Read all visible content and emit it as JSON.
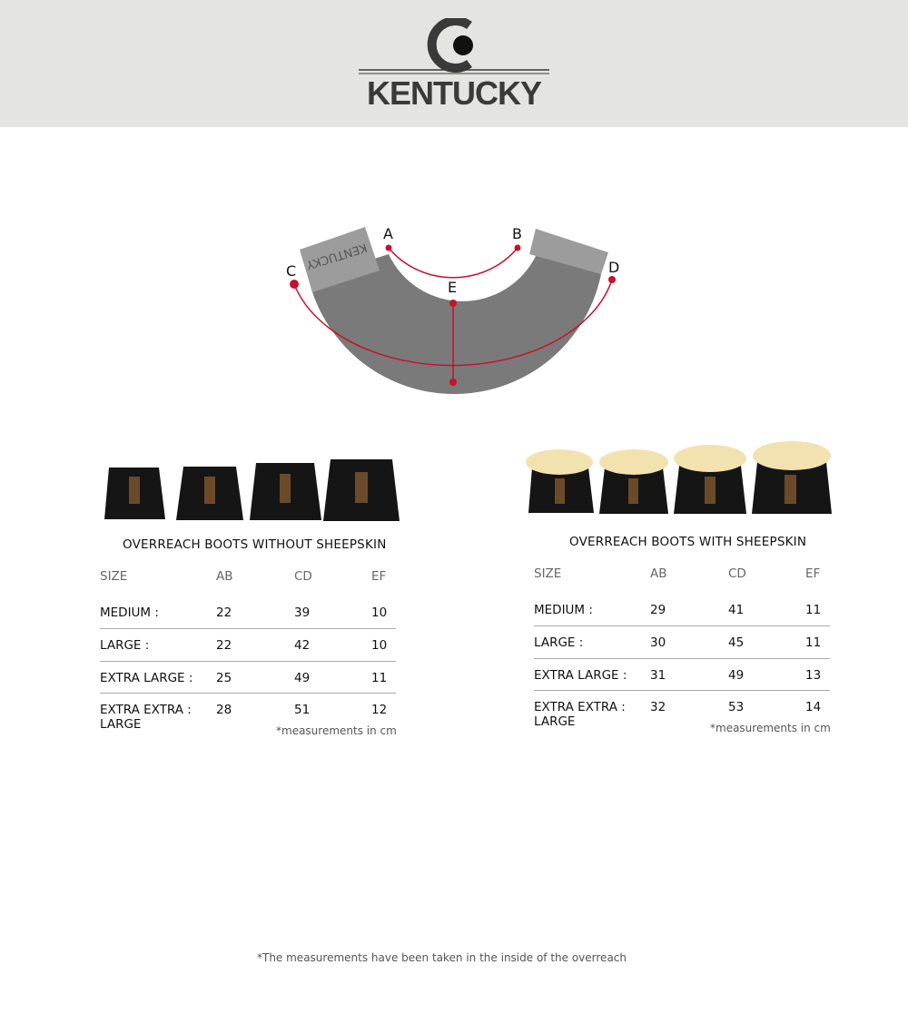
{
  "brand": {
    "name": "KENTUCKY"
  },
  "diagram": {
    "labels": [
      "A",
      "B",
      "C",
      "D",
      "E"
    ],
    "accent": "#c8102e",
    "band_color": "#7a7a7a",
    "tab_color": "#9c9c9c",
    "tab_text": "KENTUCKY"
  },
  "tables": [
    {
      "title": "OVERREACH BOOTS WITHOUT SHEEPSKIN",
      "headers": [
        "SIZE",
        "AB",
        "CD",
        "EF"
      ],
      "rows": [
        [
          "MEDIUM :",
          "22",
          "39",
          "10"
        ],
        [
          "LARGE  :",
          "22",
          "42",
          "10"
        ],
        [
          "EXTRA LARGE :",
          "25",
          "49",
          "11"
        ],
        [
          "EXTRA EXTRA : LARGE",
          "28",
          "51",
          "12"
        ]
      ],
      "note": "*measurements in cm"
    },
    {
      "title": "OVERREACH BOOTS WITH SHEEPSKIN",
      "headers": [
        "SIZE",
        "AB",
        "CD",
        "EF"
      ],
      "rows": [
        [
          "MEDIUM :",
          "29",
          "41",
          "11"
        ],
        [
          "LARGE  :",
          "30",
          "45",
          "11"
        ],
        [
          "EXTRA LARGE :",
          "31",
          "49",
          "13"
        ],
        [
          "EXTRA EXTRA : LARGE",
          "32",
          "53",
          "14"
        ]
      ],
      "note": "*measurements in cm"
    }
  ],
  "footnote": "*The measurements have been taken in the inside of the overreach"
}
